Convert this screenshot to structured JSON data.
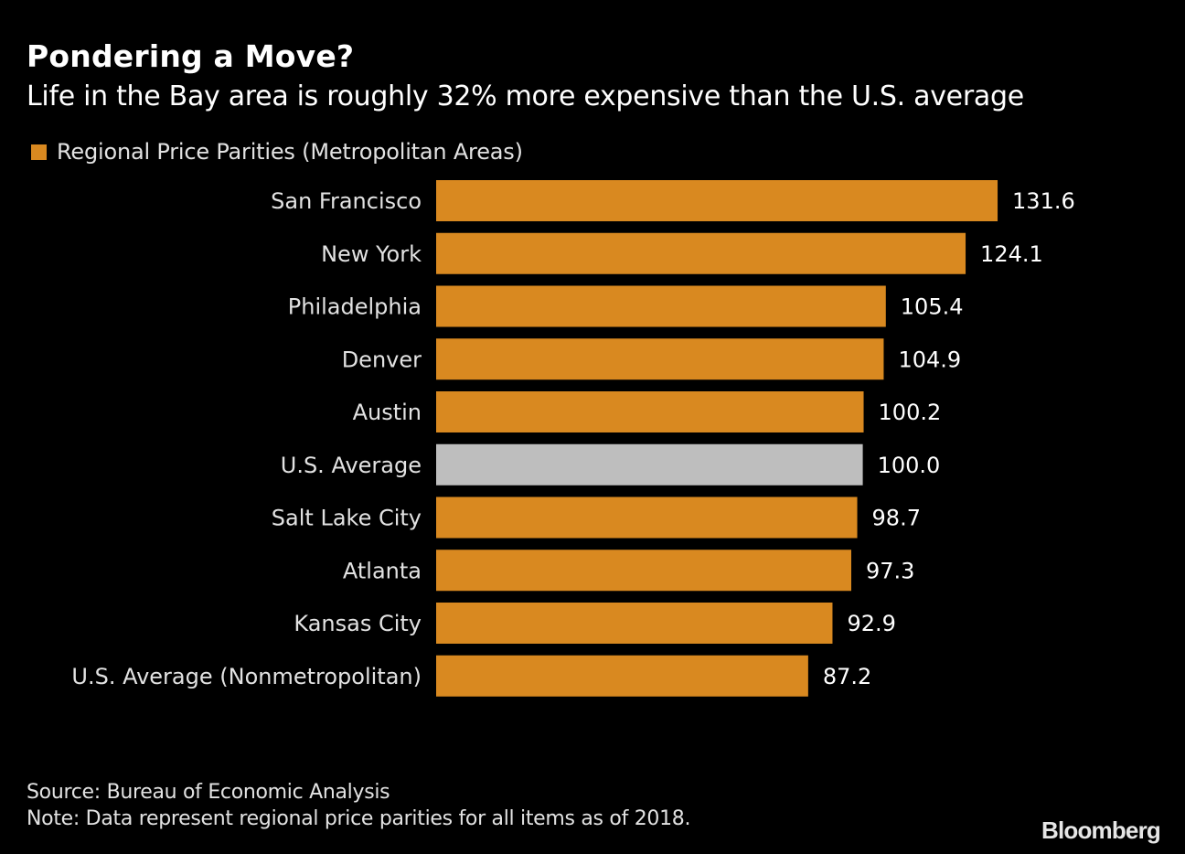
{
  "header": {
    "title": "Pondering a Move?",
    "subtitle": "Life in the Bay area is roughly 32% more expensive than the U.S. average"
  },
  "footer": {
    "source": "Source: Bureau of Economic Analysis",
    "note": "Note: Data represent regional price parities for all items as of 2018.",
    "logo": "Bloomberg"
  },
  "colors": {
    "primary_bar": "#d98920",
    "highlight_bar": "#bebebe",
    "background": "#000000"
  },
  "chart_data": {
    "type": "bar",
    "orientation": "horizontal",
    "title": "Pondering a Move?",
    "subtitle": "Life in the Bay area is roughly 32% more expensive than the U.S. average",
    "legend": [
      {
        "name": "Regional Price Parities (Metropolitan Areas)",
        "color": "#d98920"
      }
    ],
    "legend_position": "top-left",
    "xlabel": "",
    "ylabel": "",
    "xlim": [
      0,
      131.6
    ],
    "grid": false,
    "categories": [
      "San Francisco",
      "New York",
      "Philadelphia",
      "Denver",
      "Austin",
      "U.S. Average",
      "Salt Lake City",
      "Atlanta",
      "Kansas City",
      "U.S. Average (Nonmetropolitan)"
    ],
    "values": [
      131.6,
      124.1,
      105.4,
      104.9,
      100.2,
      100.0,
      98.7,
      97.3,
      92.9,
      87.2
    ],
    "value_labels": [
      "131.6",
      "124.1",
      "105.4",
      "104.9",
      "100.2",
      "100.0",
      "98.7",
      "97.3",
      "92.9",
      "87.2"
    ],
    "highlight": [
      "U.S. Average"
    ],
    "source": "Source: Bureau of Economic Analysis",
    "note": "Note: Data represent regional price parities for all items as of 2018."
  }
}
